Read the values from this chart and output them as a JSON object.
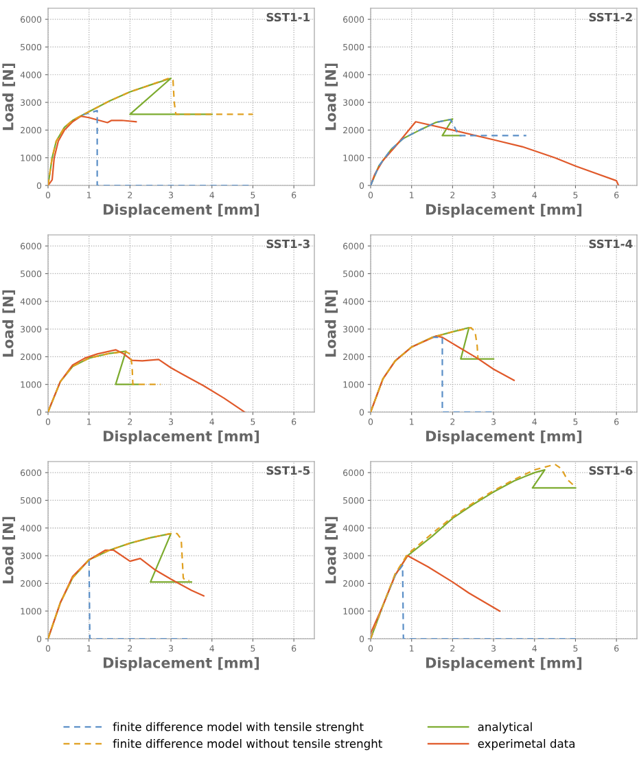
{
  "chart_data": [
    {
      "type": "line",
      "title": "SST1-1",
      "xlabel": "Displacement [mm]",
      "ylabel": "Load [N]",
      "xlim": [
        0,
        6.5
      ],
      "ylim": [
        0,
        6400
      ],
      "xticks": [
        0,
        1,
        2,
        3,
        4,
        5,
        6
      ],
      "yticks": [
        0,
        1000,
        2000,
        3000,
        4000,
        5000,
        6000
      ],
      "grid": true,
      "series": [
        {
          "color": "#5b8fc7",
          "line_style": "dashed",
          "x": [
            0.85,
            1.2,
            1.2,
            5
          ],
          "values": [
            2550,
            2700,
            0,
            0
          ]
        },
        {
          "color": "#e0a020",
          "line_style": "dashed",
          "x": [
            0,
            0.1,
            0.2,
            0.4,
            0.6,
            0.85,
            1.5,
            2,
            2.5,
            2.95,
            3.05,
            3.08,
            3.12,
            5
          ],
          "values": [
            0,
            1000,
            1600,
            2100,
            2350,
            2550,
            3050,
            3380,
            3630,
            3870,
            3800,
            3000,
            2570,
            2570
          ]
        },
        {
          "color": "#7cab2e",
          "line_style": "solid",
          "x": [
            0,
            0.1,
            0.2,
            0.4,
            0.6,
            0.85,
            1.5,
            2,
            2.5,
            3,
            2,
            4
          ],
          "values": [
            0,
            1000,
            1600,
            2100,
            2350,
            2550,
            3050,
            3380,
            3630,
            3870,
            2570,
            2570
          ]
        },
        {
          "color": "#e0592a",
          "line_style": "solid",
          "x": [
            0,
            0.1,
            0.15,
            0.25,
            0.4,
            0.6,
            0.8,
            1.0,
            1.2,
            1.45,
            1.55,
            1.8,
            2.15
          ],
          "values": [
            0,
            200,
            1000,
            1600,
            2000,
            2300,
            2500,
            2450,
            2370,
            2270,
            2350,
            2350,
            2300
          ]
        }
      ]
    },
    {
      "type": "line",
      "title": "SST1-2",
      "xlabel": "Displacement [mm]",
      "ylabel": "Load [N]",
      "xlim": [
        0,
        6.5
      ],
      "ylim": [
        0,
        6400
      ],
      "xticks": [
        0,
        1,
        2,
        3,
        4,
        5,
        6
      ],
      "yticks": [
        0,
        1000,
        2000,
        3000,
        4000,
        5000,
        6000
      ],
      "grid": true,
      "series": [
        {
          "color": "#5b8fc7",
          "line_style": "dashed",
          "x": [
            0,
            0.2,
            0.5,
            0.8,
            1.2,
            1.6,
            1.95,
            2.05,
            2.15,
            3.8
          ],
          "values": [
            0,
            700,
            1300,
            1700,
            2000,
            2280,
            2380,
            2100,
            1800,
            1800
          ]
        },
        {
          "color": "#7cab2e",
          "line_style": "solid",
          "x": [
            0,
            0.2,
            0.5,
            0.8,
            1.2,
            1.6,
            2,
            1.75,
            2.2
          ],
          "values": [
            0,
            700,
            1300,
            1700,
            2000,
            2280,
            2400,
            1800,
            1800
          ]
        },
        {
          "color": "#e0592a",
          "line_style": "solid",
          "x": [
            0,
            0.1,
            0.3,
            0.6,
            1.1,
            2,
            3,
            3.7,
            4.5,
            5,
            6,
            6.05
          ],
          "values": [
            0,
            400,
            900,
            1400,
            2300,
            2000,
            1650,
            1400,
            1000,
            700,
            170,
            0
          ]
        }
      ]
    },
    {
      "type": "line",
      "title": "SST1-3",
      "xlabel": "Displacement [mm]",
      "ylabel": "Load [N]",
      "xlim": [
        0,
        6.5
      ],
      "ylim": [
        0,
        6400
      ],
      "xticks": [
        0,
        1,
        2,
        3,
        4,
        5,
        6
      ],
      "yticks": [
        0,
        1000,
        2000,
        3000,
        4000,
        5000,
        6000
      ],
      "grid": true,
      "series": [
        {
          "color": "#e0a020",
          "line_style": "dashed",
          "x": [
            0,
            0.3,
            0.6,
            1,
            1.5,
            1.9,
            2.0,
            2.05,
            2.07,
            2.75
          ],
          "values": [
            0,
            1100,
            1650,
            1950,
            2120,
            2180,
            2100,
            1700,
            1000,
            1000
          ]
        },
        {
          "color": "#7cab2e",
          "line_style": "solid",
          "x": [
            0,
            0.3,
            0.6,
            1,
            1.5,
            1.9,
            1.65,
            2.2
          ],
          "values": [
            0,
            1100,
            1650,
            1950,
            2120,
            2200,
            1000,
            1000
          ]
        },
        {
          "color": "#e0592a",
          "line_style": "solid",
          "x": [
            0,
            0.05,
            0.3,
            0.6,
            0.9,
            1.2,
            1.65,
            1.85,
            2.05,
            2.3,
            2.7,
            3,
            3.3,
            3.8,
            4.3,
            4.8
          ],
          "values": [
            0,
            200,
            1100,
            1700,
            1950,
            2100,
            2250,
            2100,
            1870,
            1850,
            1900,
            1600,
            1350,
            950,
            500,
            0
          ]
        }
      ]
    },
    {
      "type": "line",
      "title": "SST1-4",
      "xlabel": "Displacement [mm]",
      "ylabel": "Load [N]",
      "xlim": [
        0,
        6.5
      ],
      "ylim": [
        0,
        6400
      ],
      "xticks": [
        0,
        1,
        2,
        3,
        4,
        5,
        6
      ],
      "yticks": [
        0,
        1000,
        2000,
        3000,
        4000,
        5000,
        6000
      ],
      "grid": true,
      "series": [
        {
          "color": "#5b8fc7",
          "line_style": "dashed",
          "x": [
            1.5,
            1.75,
            1.75,
            3
          ],
          "values": [
            2700,
            2700,
            0,
            0
          ]
        },
        {
          "color": "#e0a020",
          "line_style": "dashed",
          "x": [
            0,
            0.3,
            0.6,
            1,
            1.5,
            2,
            2.45,
            2.55,
            2.6,
            2.62
          ],
          "values": [
            0,
            1200,
            1850,
            2350,
            2700,
            2900,
            3050,
            2900,
            2400,
            1950
          ]
        },
        {
          "color": "#7cab2e",
          "line_style": "solid",
          "x": [
            0,
            0.3,
            0.6,
            1,
            1.5,
            2,
            2.4,
            2.2,
            3
          ],
          "values": [
            0,
            1200,
            1850,
            2350,
            2700,
            2900,
            3050,
            1920,
            1920
          ]
        },
        {
          "color": "#e0592a",
          "line_style": "solid",
          "x": [
            0,
            0.3,
            0.6,
            1,
            1.6,
            1.75,
            2.2,
            2.6,
            3,
            3.5
          ],
          "values": [
            0,
            1200,
            1850,
            2350,
            2750,
            2700,
            2300,
            1950,
            1550,
            1150
          ]
        }
      ]
    },
    {
      "type": "line",
      "title": "SST1-5",
      "xlabel": "Displacement [mm]",
      "ylabel": "Load [N]",
      "xlim": [
        0,
        6.5
      ],
      "ylim": [
        0,
        6400
      ],
      "xticks": [
        0,
        1,
        2,
        3,
        4,
        5,
        6
      ],
      "yticks": [
        0,
        1000,
        2000,
        3000,
        4000,
        5000,
        6000
      ],
      "grid": true,
      "series": [
        {
          "color": "#5b8fc7",
          "line_style": "dashed",
          "x": [
            1,
            1.02,
            3.4
          ],
          "values": [
            2850,
            0,
            0
          ]
        },
        {
          "color": "#e0a020",
          "line_style": "dashed",
          "x": [
            0,
            0.3,
            0.6,
            1,
            1.5,
            2,
            2.5,
            3,
            3.15,
            3.25,
            3.3,
            3.35,
            3.45
          ],
          "values": [
            0,
            1300,
            2200,
            2850,
            3200,
            3450,
            3650,
            3800,
            3800,
            3600,
            2200,
            2100,
            2100
          ]
        },
        {
          "color": "#7cab2e",
          "line_style": "solid",
          "x": [
            0,
            0.3,
            0.6,
            1,
            1.5,
            2,
            2.5,
            3,
            2.5,
            3.5
          ],
          "values": [
            0,
            1300,
            2200,
            2850,
            3200,
            3450,
            3650,
            3800,
            2050,
            2050
          ]
        },
        {
          "color": "#e0592a",
          "line_style": "solid",
          "x": [
            0,
            0.3,
            0.6,
            1,
            1.4,
            1.6,
            2,
            2.25,
            2.6,
            3,
            3.5,
            3.8
          ],
          "values": [
            0,
            1300,
            2250,
            2850,
            3200,
            3200,
            2800,
            2900,
            2500,
            2150,
            1750,
            1550
          ]
        }
      ]
    },
    {
      "type": "line",
      "title": "SST1-6",
      "xlabel": "Displacement [mm]",
      "ylabel": "Load [N]",
      "xlim": [
        0,
        6.5
      ],
      "ylim": [
        0,
        6400
      ],
      "xticks": [
        0,
        1,
        2,
        3,
        4,
        5,
        6
      ],
      "yticks": [
        0,
        1000,
        2000,
        3000,
        4000,
        5000,
        6000
      ],
      "grid": true,
      "legend": "bottom",
      "series": [
        {
          "name": "finite difference model with tensile strenght",
          "color": "#5b8fc7",
          "line_style": "dashed",
          "x": [
            0,
            0.3,
            0.6,
            0.78,
            0.8,
            5
          ],
          "values": [
            0,
            1200,
            2300,
            2650,
            0,
            0
          ]
        },
        {
          "name": "finite difference model without tensile strenght",
          "color": "#e0a020",
          "line_style": "dashed",
          "x": [
            0,
            0.3,
            0.6,
            0.9,
            1.5,
            2,
            2.5,
            3,
            3.5,
            4,
            4.5,
            4.65,
            4.8,
            4.95
          ],
          "values": [
            0,
            1200,
            2350,
            3050,
            3800,
            4400,
            4900,
            5350,
            5750,
            6100,
            6300,
            6150,
            5750,
            5550
          ]
        },
        {
          "name": "analytical",
          "color": "#7cab2e",
          "line_style": "solid",
          "x": [
            0,
            0.3,
            0.6,
            0.9,
            1.5,
            2,
            2.5,
            3,
            3.5,
            4,
            4.25,
            3.95,
            5
          ],
          "values": [
            0,
            1200,
            2300,
            3000,
            3700,
            4350,
            4850,
            5300,
            5700,
            6000,
            6100,
            5450,
            5450
          ]
        },
        {
          "name": "experimetal data",
          "color": "#e0592a",
          "line_style": "solid",
          "x": [
            0,
            0.3,
            0.6,
            0.9,
            1.4,
            2,
            2.4,
            3.15
          ],
          "values": [
            200,
            1200,
            2300,
            3000,
            2600,
            2050,
            1650,
            1000
          ]
        }
      ]
    }
  ]
}
